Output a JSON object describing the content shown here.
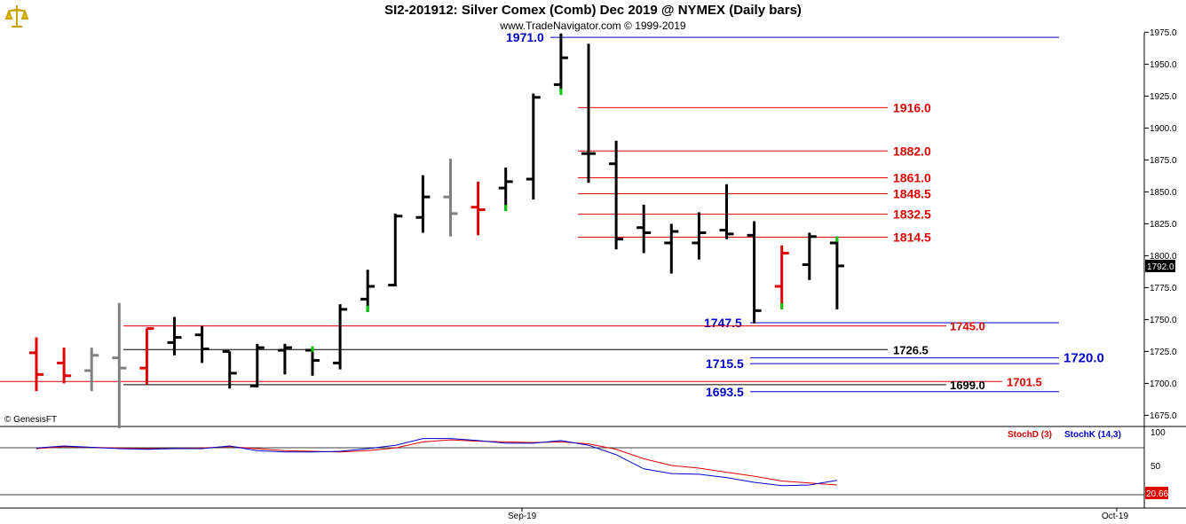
{
  "header": {
    "title": "SI2-201912:  Silver Comex (Comb) Dec 2019 @ NYMEX  (Daily bars)",
    "subtitle": "www.TradeNavigator.com © 1999-2019"
  },
  "watermark": "© GenesisFT",
  "colors": {
    "up": "#000000",
    "down": "#e00000",
    "neutral": "#808080",
    "blue": "#0000cc",
    "red": "#e00000",
    "green": "#00cc00"
  },
  "chart_data": [
    {
      "type": "ohlc",
      "ylim": [
        1664,
        1983
      ],
      "y_ticks": [
        "1975.0",
        "1950.0",
        "1925.0",
        "1900.0",
        "1875.0",
        "1850.0",
        "1825.0",
        "1800.0",
        "1775.0",
        "1750.0",
        "1725.0",
        "1700.0",
        "1675.0"
      ],
      "y_tick_values": [
        1975,
        1950,
        1925,
        1900,
        1875,
        1850,
        1825,
        1800,
        1775,
        1750,
        1725,
        1700,
        1675
      ],
      "x_labels": [
        "Sep-19",
        "Oct-19"
      ],
      "last_price": "1792.0",
      "bars": [
        {
          "o": 1724,
          "h": 1736,
          "l": 1694,
          "c": 1707,
          "color": "red"
        },
        {
          "o": 1716,
          "h": 1728,
          "l": 1700,
          "c": 1706,
          "color": "red"
        },
        {
          "o": 1710,
          "h": 1728,
          "l": 1694,
          "c": 1722,
          "color": "neutral"
        },
        {
          "o": 1720,
          "h": 1763,
          "l": 1665,
          "c": 1712,
          "color": "neutral"
        },
        {
          "o": 1712,
          "h": 1743,
          "l": 1699,
          "c": 1743,
          "color": "red"
        },
        {
          "o": 1732,
          "h": 1752,
          "l": 1722,
          "c": 1736,
          "color": "black"
        },
        {
          "o": 1738,
          "h": 1745,
          "l": 1716,
          "c": 1727,
          "color": "black"
        },
        {
          "o": 1725,
          "h": 1725,
          "l": 1696,
          "c": 1708,
          "color": "black"
        },
        {
          "o": 1698,
          "h": 1731,
          "l": 1697,
          "c": 1728,
          "color": "black"
        },
        {
          "o": 1726,
          "h": 1731,
          "l": 1707,
          "c": 1728,
          "color": "black"
        },
        {
          "o": 1726,
          "h": 1729,
          "l": 1706,
          "c": 1718,
          "color": "black",
          "green_top": true
        },
        {
          "o": 1716,
          "h": 1762,
          "l": 1711,
          "c": 1758,
          "color": "black"
        },
        {
          "o": 1766,
          "h": 1789,
          "l": 1756,
          "c": 1776,
          "color": "black",
          "green_bottom": true
        },
        {
          "o": 1777,
          "h": 1833,
          "l": 1776,
          "c": 1831,
          "color": "black"
        },
        {
          "o": 1830,
          "h": 1863,
          "l": 1818,
          "c": 1846,
          "color": "black"
        },
        {
          "o": 1846,
          "h": 1876,
          "l": 1815,
          "c": 1833,
          "color": "neutral"
        },
        {
          "o": 1838,
          "h": 1858,
          "l": 1816,
          "c": 1836,
          "color": "red"
        },
        {
          "o": 1853,
          "h": 1869,
          "l": 1835,
          "c": 1858,
          "color": "black",
          "green_bottom": true
        },
        {
          "o": 1860,
          "h": 1927,
          "l": 1844,
          "c": 1924,
          "color": "black"
        },
        {
          "o": 1934,
          "h": 1974,
          "l": 1926,
          "c": 1955,
          "color": "black",
          "green_bottom": true
        },
        {
          "o": 1880,
          "h": 1966,
          "l": 1857,
          "c": 1880,
          "color": "black"
        },
        {
          "o": 1872,
          "h": 1890,
          "l": 1805,
          "c": 1813,
          "color": "black"
        },
        {
          "o": 1822,
          "h": 1840,
          "l": 1802,
          "c": 1818,
          "color": "black"
        },
        {
          "o": 1810,
          "h": 1825,
          "l": 1786,
          "c": 1819,
          "color": "black"
        },
        {
          "o": 1810,
          "h": 1834,
          "l": 1797,
          "c": 1818,
          "color": "black"
        },
        {
          "o": 1820,
          "h": 1856,
          "l": 1813,
          "c": 1817,
          "color": "black"
        },
        {
          "o": 1816,
          "h": 1827,
          "l": 1747,
          "c": 1757,
          "color": "black"
        },
        {
          "o": 1776,
          "h": 1808,
          "l": 1758,
          "c": 1802,
          "color": "red",
          "green_bottom": true
        },
        {
          "o": 1793,
          "h": 1818,
          "l": 1781,
          "c": 1815,
          "color": "black"
        },
        {
          "o": 1810,
          "h": 1815,
          "l": 1758,
          "c": 1792,
          "color": "black",
          "green_top": true
        }
      ],
      "levels": [
        {
          "value": 1971.0,
          "label": "1971.0",
          "color": "blue",
          "line": "blue"
        },
        {
          "value": 1916.0,
          "label": "1916.0",
          "color": "red",
          "line": "red"
        },
        {
          "value": 1882.0,
          "label": "1882.0",
          "color": "red",
          "line": "red"
        },
        {
          "value": 1861.0,
          "label": "1861.0",
          "color": "red",
          "line": "red"
        },
        {
          "value": 1848.5,
          "label": "1848.5",
          "color": "red",
          "line": "red"
        },
        {
          "value": 1832.5,
          "label": "1832.5",
          "color": "red",
          "line": "red"
        },
        {
          "value": 1814.5,
          "label": "1814.5",
          "color": "red",
          "line": "red"
        },
        {
          "value": 1747.5,
          "label": "1747.5",
          "color": "blue",
          "line": "blue"
        },
        {
          "value": 1745.0,
          "label": "1745.0",
          "color": "red",
          "line": "red"
        },
        {
          "value": 1726.5,
          "label": "1726.5",
          "color": "black",
          "line": "black"
        },
        {
          "value": 1720.0,
          "label": "1720.0",
          "color": "blue",
          "line": "blue"
        },
        {
          "value": 1715.5,
          "label": "1715.5",
          "color": "blue",
          "line": "blue"
        },
        {
          "value": 1701.5,
          "label": "1701.5",
          "color": "red",
          "line": "red"
        },
        {
          "value": 1699.0,
          "label": "1699.0",
          "color": "black",
          "line": "black"
        },
        {
          "value": 1693.5,
          "label": "1693.5",
          "color": "blue",
          "line": "blue"
        }
      ]
    },
    {
      "type": "line",
      "ylim": [
        0,
        100
      ],
      "y_ticks": [
        "100",
        "50"
      ],
      "y_tick_values": [
        100,
        50
      ],
      "last_value": "20.66",
      "series": [
        {
          "name": "StochD (3)",
          "color": "red",
          "values": [
            75,
            78,
            77,
            76,
            75,
            75,
            76,
            78,
            75,
            72,
            71,
            70,
            72,
            76,
            85,
            88,
            86,
            85,
            84,
            85,
            82,
            74,
            60,
            50,
            46,
            40,
            34,
            27,
            24,
            21
          ]
        },
        {
          "name": "StochK (14,3)",
          "color": "blue",
          "values": [
            76,
            79,
            77,
            75,
            74,
            75,
            75,
            79,
            72,
            70,
            70,
            71,
            75,
            80,
            90,
            90,
            87,
            83,
            83,
            87,
            80,
            66,
            45,
            38,
            37,
            32,
            25,
            20,
            21,
            28
          ]
        }
      ]
    }
  ]
}
